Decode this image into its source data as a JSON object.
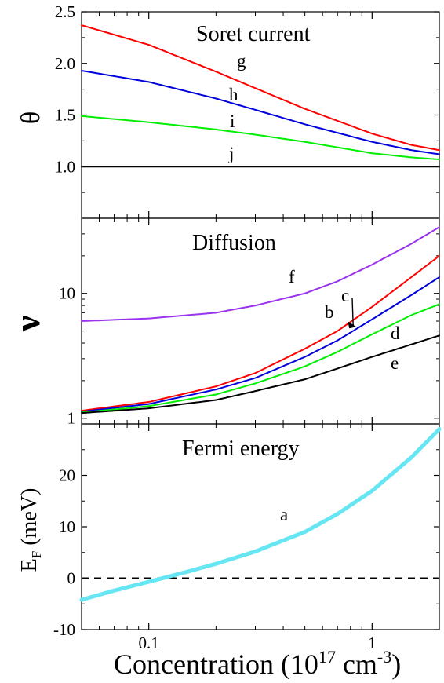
{
  "chart_data": [
    {
      "type": "line",
      "title": "Soret current",
      "ylabel": "θ",
      "xscale": "log",
      "xlim": [
        0.05,
        2.0
      ],
      "ylim": [
        0.5,
        2.5
      ],
      "yticks": [
        "1.0",
        "1.5",
        "2.0",
        "2.5"
      ],
      "series": [
        {
          "name": "g",
          "color": "#ff0000",
          "x": [
            0.05,
            0.1,
            0.2,
            0.3,
            0.5,
            1.0,
            1.5,
            2.0
          ],
          "y": [
            2.37,
            2.18,
            1.92,
            1.76,
            1.56,
            1.32,
            1.21,
            1.16
          ]
        },
        {
          "name": "h",
          "color": "#0000dd",
          "x": [
            0.05,
            0.1,
            0.2,
            0.3,
            0.5,
            1.0,
            1.5,
            2.0
          ],
          "y": [
            1.93,
            1.82,
            1.66,
            1.55,
            1.41,
            1.24,
            1.16,
            1.12
          ]
        },
        {
          "name": "i",
          "color": "#00ee00",
          "x": [
            0.05,
            0.1,
            0.2,
            0.3,
            0.5,
            1.0,
            1.5,
            2.0
          ],
          "y": [
            1.49,
            1.43,
            1.36,
            1.31,
            1.24,
            1.13,
            1.09,
            1.07
          ]
        },
        {
          "name": "j",
          "color": "#000000",
          "x": [
            0.05,
            2.0
          ],
          "y": [
            1.0,
            1.0
          ]
        }
      ]
    },
    {
      "type": "line",
      "title": "Diffusion",
      "ylabel": "ν",
      "xscale": "log",
      "yscale": "log",
      "xlim": [
        0.05,
        2.0
      ],
      "ylim": [
        0.9,
        40
      ],
      "yticks": [
        "1",
        "10"
      ],
      "annotations": [
        "c"
      ],
      "series": [
        {
          "name": "f",
          "color": "#9933ee",
          "x": [
            0.05,
            0.1,
            0.2,
            0.3,
            0.5,
            0.7,
            1.0,
            1.5,
            2.0
          ],
          "y": [
            6.0,
            6.3,
            7.0,
            8.0,
            10.0,
            12.5,
            17.0,
            25.0,
            34.0
          ]
        },
        {
          "name": "b",
          "color": "#ff0000",
          "x": [
            0.05,
            0.1,
            0.2,
            0.3,
            0.5,
            0.7,
            1.0,
            1.5,
            2.0
          ],
          "y": [
            1.15,
            1.35,
            1.8,
            2.3,
            3.6,
            5.0,
            7.8,
            13.5,
            20.0
          ]
        },
        {
          "name": "c",
          "color": "#0000dd",
          "x": [
            0.05,
            0.1,
            0.2,
            0.3,
            0.5,
            0.7,
            1.0,
            1.5,
            2.0
          ],
          "y": [
            1.13,
            1.3,
            1.7,
            2.1,
            3.1,
            4.2,
            6.2,
            9.7,
            13.5
          ]
        },
        {
          "name": "d",
          "color": "#00ee00",
          "x": [
            0.05,
            0.1,
            0.2,
            0.3,
            0.5,
            0.7,
            1.0,
            1.5,
            2.0
          ],
          "y": [
            1.11,
            1.25,
            1.55,
            1.9,
            2.6,
            3.4,
            4.7,
            6.7,
            8.2
          ]
        },
        {
          "name": "e",
          "color": "#000000",
          "x": [
            0.05,
            0.1,
            0.2,
            0.3,
            0.5,
            0.7,
            1.0,
            1.5,
            2.0
          ],
          "y": [
            1.1,
            1.2,
            1.4,
            1.65,
            2.05,
            2.5,
            3.1,
            3.9,
            4.6
          ]
        }
      ]
    },
    {
      "type": "line",
      "title": "Fermi energy",
      "ylabel": "E",
      "ylabel_sub": "F",
      "ylabel_unit": " (meV)",
      "xlabel": "Concentration (10",
      "xlabel_sup": "17",
      "xlabel_mid": " cm",
      "xlabel_sup2": "-3",
      "xlabel_end": ")",
      "xscale": "log",
      "xlim": [
        0.05,
        2.0
      ],
      "ylim": [
        -10,
        30
      ],
      "yticks": [
        "-10",
        "0",
        "10",
        "20"
      ],
      "xticks": [
        "0.1",
        "1"
      ],
      "reference_line": {
        "y": 0,
        "style": "dashed"
      },
      "series": [
        {
          "name": "a",
          "color": "#66e6f2",
          "x": [
            0.05,
            0.07,
            0.1,
            0.12,
            0.15,
            0.2,
            0.3,
            0.5,
            0.7,
            1.0,
            1.5,
            2.0
          ],
          "y": [
            -4.2,
            -2.4,
            -0.7,
            0.2,
            1.3,
            2.8,
            5.2,
            9.0,
            12.5,
            17.0,
            23.5,
            29.0
          ]
        }
      ]
    }
  ]
}
